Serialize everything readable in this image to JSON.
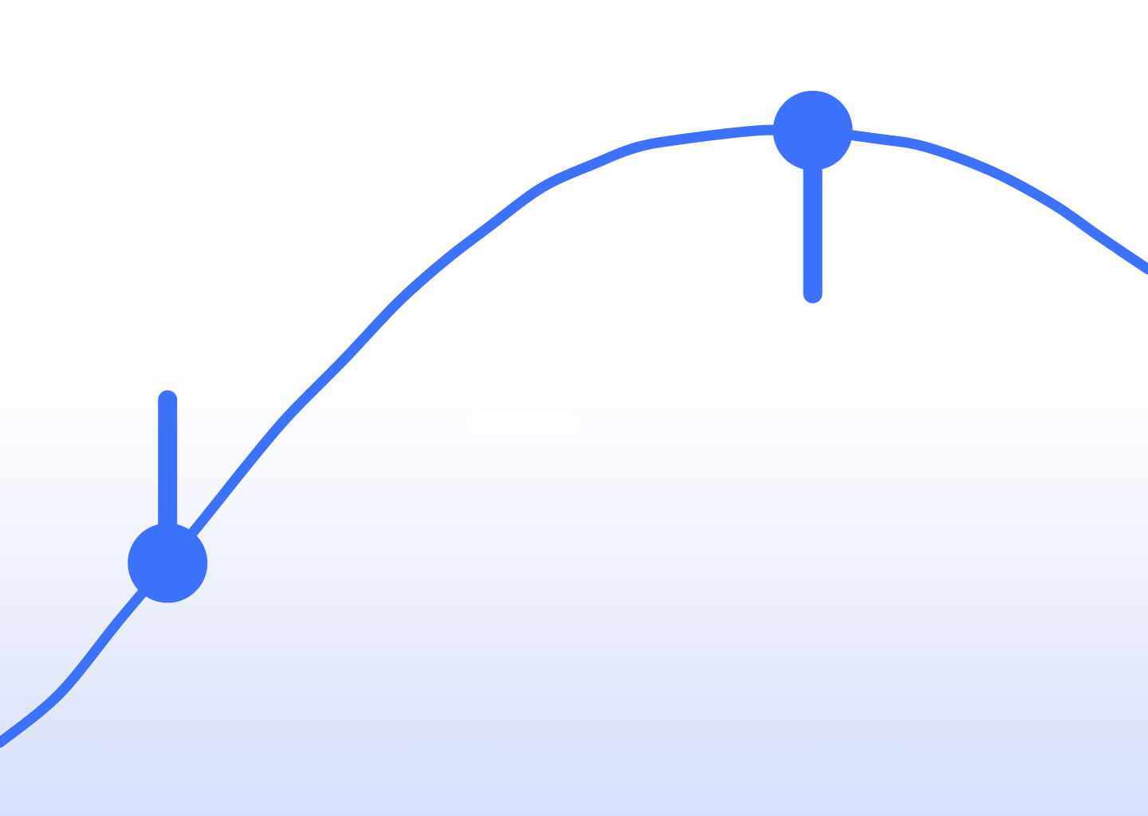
{
  "colors": {
    "accent": "#3d72ff",
    "background_top": "#ffffff",
    "background_bottom": "#d6e0fd"
  },
  "chart_data": {
    "type": "line",
    "curve": [
      [
        0,
        0.09
      ],
      [
        0.052,
        0.15
      ],
      [
        0.104,
        0.24
      ],
      [
        0.146,
        0.31
      ],
      [
        0.181,
        0.37
      ],
      [
        0.215,
        0.43
      ],
      [
        0.251,
        0.49
      ],
      [
        0.3,
        0.56
      ],
      [
        0.347,
        0.63
      ],
      [
        0.387,
        0.68
      ],
      [
        0.424,
        0.72
      ],
      [
        0.472,
        0.77
      ],
      [
        0.519,
        0.8
      ],
      [
        0.556,
        0.82
      ],
      [
        0.597,
        0.83
      ],
      [
        0.66,
        0.84
      ],
      [
        0.694,
        0.84
      ],
      [
        0.708,
        0.84
      ],
      [
        0.764,
        0.83
      ],
      [
        0.806,
        0.82
      ],
      [
        0.864,
        0.79
      ],
      [
        0.917,
        0.75
      ],
      [
        0.958,
        0.71
      ],
      [
        1.0,
        0.67
      ]
    ],
    "markers": [
      {
        "name": "point-low",
        "x": 0.146,
        "y": 0.31,
        "stem": "up"
      },
      {
        "name": "point-peak",
        "x": 0.708,
        "y": 0.84,
        "stem": "down"
      }
    ]
  }
}
